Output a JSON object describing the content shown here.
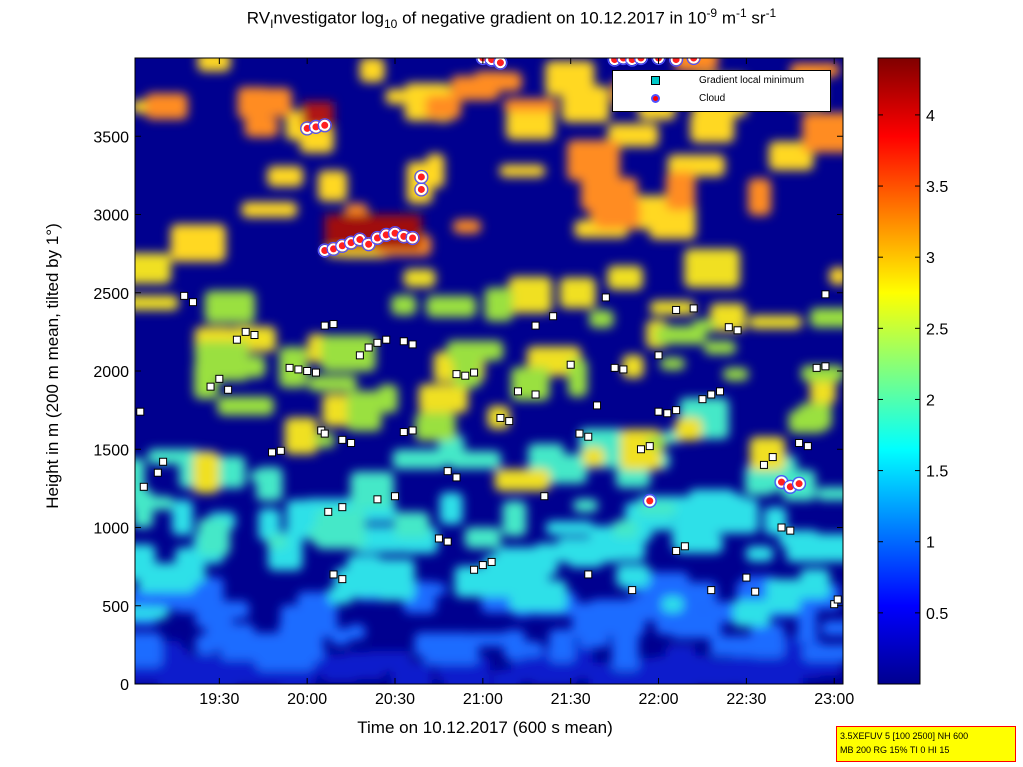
{
  "title": {
    "prefix": "RV",
    "sub_i": "I",
    "part1": "nvestigator log",
    "sub_10": "10",
    "part2": " of negative gradient on 10.12.2017 in 10",
    "sup_m9": "-9",
    "part3": " m",
    "sup_m1": "-1",
    "part4": " sr",
    "sup_m1b": "-1"
  },
  "info_box": {
    "line1": "3.5XEFUV 5 [100 2500] NH 600",
    "line2": "MB 200 RG 15% TI 0 HI 15"
  },
  "chart_data": {
    "type": "heatmap",
    "xlabel": "Time on 10.12.2017 (600 s mean)",
    "ylabel": "Height in m (200 m mean, tilted by 1°)",
    "x_range_hours": [
      19.02,
      23.05
    ],
    "ylim": [
      0,
      4000
    ],
    "x_ticks": [
      {
        "label": "19:30",
        "hour": 19.5
      },
      {
        "label": "20:00",
        "hour": 20.0
      },
      {
        "label": "20:30",
        "hour": 20.5
      },
      {
        "label": "21:00",
        "hour": 21.0
      },
      {
        "label": "21:30",
        "hour": 21.5
      },
      {
        "label": "22:00",
        "hour": 22.0
      },
      {
        "label": "22:30",
        "hour": 22.5
      },
      {
        "label": "23:00",
        "hour": 23.0
      }
    ],
    "y_ticks": [
      0,
      500,
      1000,
      1500,
      2000,
      2500,
      3000,
      3500
    ],
    "colorbar": {
      "range": [
        0,
        4.4
      ],
      "ticks": [
        0.5,
        1,
        1.5,
        2,
        2.5,
        3,
        3.5,
        4
      ],
      "colormap": "jet"
    },
    "legend": {
      "placement": "top-right",
      "entries": [
        {
          "name": "Gradient local minimum",
          "color": "#00c8c8"
        },
        {
          "name": "Cloud",
          "color": "#ff0000"
        }
      ]
    },
    "gradient_minimum_series": [
      [
        19.05,
        1740
      ],
      [
        19.07,
        1260
      ],
      [
        19.15,
        1350
      ],
      [
        19.18,
        1420
      ],
      [
        19.3,
        2480
      ],
      [
        19.35,
        2440
      ],
      [
        19.45,
        1900
      ],
      [
        19.5,
        1950
      ],
      [
        19.55,
        1880
      ],
      [
        19.6,
        2200
      ],
      [
        19.65,
        2250
      ],
      [
        19.7,
        2230
      ],
      [
        19.8,
        1480
      ],
      [
        19.85,
        1490
      ],
      [
        19.9,
        2020
      ],
      [
        19.95,
        2010
      ],
      [
        20.0,
        2000
      ],
      [
        20.05,
        1990
      ],
      [
        20.08,
        1620
      ],
      [
        20.1,
        1600
      ],
      [
        20.1,
        2290
      ],
      [
        20.15,
        2300
      ],
      [
        20.2,
        1560
      ],
      [
        20.25,
        1540
      ],
      [
        20.15,
        700
      ],
      [
        20.2,
        670
      ],
      [
        20.12,
        1100
      ],
      [
        20.2,
        1130
      ],
      [
        20.3,
        2100
      ],
      [
        20.35,
        2150
      ],
      [
        20.4,
        2180
      ],
      [
        20.45,
        2200
      ],
      [
        20.55,
        2190
      ],
      [
        20.6,
        2170
      ],
      [
        20.4,
        1180
      ],
      [
        20.5,
        1200
      ],
      [
        20.55,
        1610
      ],
      [
        20.6,
        1620
      ],
      [
        20.8,
        1360
      ],
      [
        20.85,
        1320
      ],
      [
        20.85,
        1980
      ],
      [
        20.9,
        1970
      ],
      [
        20.95,
        1990
      ],
      [
        20.75,
        930
      ],
      [
        20.8,
        910
      ],
      [
        20.95,
        730
      ],
      [
        21.0,
        760
      ],
      [
        21.05,
        780
      ],
      [
        21.1,
        1700
      ],
      [
        21.15,
        1680
      ],
      [
        21.2,
        1870
      ],
      [
        21.3,
        1850
      ],
      [
        21.35,
        1200
      ],
      [
        21.3,
        2290
      ],
      [
        21.4,
        2350
      ],
      [
        21.5,
        2040
      ],
      [
        21.55,
        1600
      ],
      [
        21.6,
        1580
      ],
      [
        21.6,
        700
      ],
      [
        21.65,
        1780
      ],
      [
        21.7,
        2470
      ],
      [
        21.75,
        2020
      ],
      [
        21.8,
        2010
      ],
      [
        21.85,
        600
      ],
      [
        21.9,
        1500
      ],
      [
        21.95,
        1520
      ],
      [
        22.0,
        1740
      ],
      [
        22.05,
        1730
      ],
      [
        22.1,
        1750
      ],
      [
        22.0,
        2100
      ],
      [
        22.1,
        850
      ],
      [
        22.15,
        880
      ],
      [
        22.1,
        2390
      ],
      [
        22.2,
        2400
      ],
      [
        22.25,
        1820
      ],
      [
        22.3,
        1850
      ],
      [
        22.35,
        1870
      ],
      [
        22.4,
        2280
      ],
      [
        22.45,
        2260
      ],
      [
        22.3,
        600
      ],
      [
        22.5,
        680
      ],
      [
        22.55,
        590
      ],
      [
        22.6,
        1400
      ],
      [
        22.65,
        1450
      ],
      [
        22.7,
        1000
      ],
      [
        22.75,
        980
      ],
      [
        22.8,
        1540
      ],
      [
        22.85,
        1520
      ],
      [
        22.9,
        2020
      ],
      [
        22.95,
        2030
      ],
      [
        22.95,
        2490
      ],
      [
        23.0,
        510
      ],
      [
        23.02,
        540
      ]
    ],
    "cloud_series": [
      [
        20.1,
        2770
      ],
      [
        20.15,
        2780
      ],
      [
        20.2,
        2800
      ],
      [
        20.25,
        2820
      ],
      [
        20.3,
        2840
      ],
      [
        20.35,
        2810
      ],
      [
        20.4,
        2850
      ],
      [
        20.45,
        2870
      ],
      [
        20.5,
        2880
      ],
      [
        20.55,
        2860
      ],
      [
        20.6,
        2850
      ],
      [
        20.0,
        3550
      ],
      [
        20.05,
        3560
      ],
      [
        20.1,
        3570
      ],
      [
        20.65,
        3160
      ],
      [
        20.65,
        3240
      ],
      [
        21.0,
        4000
      ],
      [
        21.05,
        3990
      ],
      [
        21.1,
        3970
      ],
      [
        21.75,
        3990
      ],
      [
        21.8,
        4000
      ],
      [
        21.85,
        3990
      ],
      [
        21.9,
        4000
      ],
      [
        22.0,
        4000
      ],
      [
        22.1,
        3990
      ],
      [
        22.2,
        4000
      ],
      [
        21.95,
        1170
      ],
      [
        22.7,
        1290
      ],
      [
        22.75,
        1260
      ],
      [
        22.8,
        1280
      ]
    ]
  }
}
